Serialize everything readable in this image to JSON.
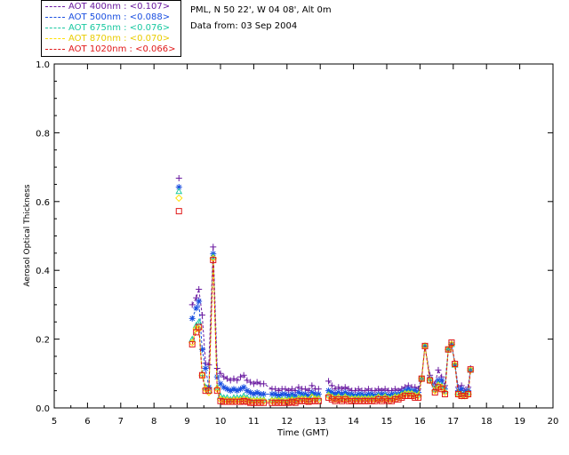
{
  "header": {
    "site": "PML, N 50 22', W 04 08', Alt 0m",
    "date": "Data from: 03 Sep 2004"
  },
  "chart_data": {
    "type": "scatter",
    "title": "",
    "xlabel": "Time (GMT)",
    "ylabel": "Aerosol Optical Thickness",
    "xlim": [
      5,
      20
    ],
    "ylim": [
      0,
      1.0
    ],
    "xticks": [
      5,
      6,
      7,
      8,
      9,
      10,
      11,
      12,
      13,
      14,
      15,
      16,
      17,
      18,
      19,
      20
    ],
    "yticks": [
      "0.0",
      "0.2",
      "0.4",
      "0.6",
      "0.8",
      "1.0"
    ],
    "legend_position": "top-left (outside plot)",
    "series": [
      {
        "name": "AOT  400nm : <0.107>",
        "color": "#6a1aa0",
        "marker": "plus",
        "x": [
          8.75,
          9.15,
          9.27,
          9.35,
          9.45,
          9.55,
          9.65,
          9.78,
          9.9,
          10.0,
          10.1,
          10.2,
          10.3,
          10.4,
          10.5,
          10.6,
          10.7,
          10.8,
          10.9,
          11.0,
          11.1,
          11.2,
          11.3,
          11.55,
          11.65,
          11.75,
          11.85,
          11.95,
          12.05,
          12.15,
          12.25,
          12.35,
          12.45,
          12.55,
          12.65,
          12.75,
          12.85,
          12.95,
          13.25,
          13.35,
          13.45,
          13.55,
          13.65,
          13.75,
          13.85,
          13.95,
          14.05,
          14.15,
          14.25,
          14.35,
          14.45,
          14.55,
          14.65,
          14.75,
          14.85,
          14.95,
          15.05,
          15.15,
          15.25,
          15.35,
          15.45,
          15.55,
          15.65,
          15.75,
          15.85,
          15.95,
          16.05,
          16.15,
          16.3,
          16.45,
          16.55,
          16.65,
          16.75,
          16.85,
          16.95,
          17.05,
          17.15,
          17.25,
          17.35,
          17.45,
          17.52
        ],
        "y": [
          0.668,
          0.3,
          0.32,
          0.345,
          0.27,
          0.13,
          0.125,
          0.468,
          0.115,
          0.1,
          0.09,
          0.085,
          0.08,
          0.085,
          0.08,
          0.09,
          0.095,
          0.08,
          0.075,
          0.07,
          0.075,
          0.07,
          0.07,
          0.055,
          0.055,
          0.05,
          0.055,
          0.055,
          0.05,
          0.055,
          0.05,
          0.06,
          0.055,
          0.055,
          0.05,
          0.065,
          0.055,
          0.055,
          0.078,
          0.065,
          0.055,
          0.06,
          0.055,
          0.06,
          0.055,
          0.05,
          0.05,
          0.055,
          0.05,
          0.05,
          0.055,
          0.05,
          0.05,
          0.055,
          0.05,
          0.055,
          0.05,
          0.05,
          0.055,
          0.05,
          0.055,
          0.06,
          0.065,
          0.06,
          0.06,
          0.055,
          0.09,
          0.18,
          0.095,
          0.07,
          0.11,
          0.09,
          0.065,
          0.17,
          0.19,
          0.13,
          0.06,
          0.065,
          0.05,
          0.06,
          0.115
        ]
      },
      {
        "name": "AOT  500nm : <0.088>",
        "color": "#1a4fe0",
        "marker": "asterisk",
        "x": [
          8.75,
          9.15,
          9.27,
          9.35,
          9.45,
          9.55,
          9.65,
          9.78,
          9.9,
          10.0,
          10.1,
          10.2,
          10.3,
          10.4,
          10.5,
          10.6,
          10.7,
          10.8,
          10.9,
          11.0,
          11.1,
          11.2,
          11.3,
          11.55,
          11.65,
          11.75,
          11.85,
          11.95,
          12.05,
          12.15,
          12.25,
          12.35,
          12.45,
          12.55,
          12.65,
          12.75,
          12.85,
          12.95,
          13.25,
          13.35,
          13.45,
          13.55,
          13.65,
          13.75,
          13.85,
          13.95,
          14.05,
          14.15,
          14.25,
          14.35,
          14.45,
          14.55,
          14.65,
          14.75,
          14.85,
          14.95,
          15.05,
          15.15,
          15.25,
          15.35,
          15.45,
          15.55,
          15.65,
          15.75,
          15.85,
          15.95,
          16.05,
          16.15,
          16.3,
          16.45,
          16.55,
          16.65,
          16.75,
          16.85,
          16.95,
          17.05,
          17.15,
          17.25,
          17.35,
          17.45,
          17.52
        ],
        "y": [
          0.642,
          0.26,
          0.29,
          0.31,
          0.17,
          0.115,
          0.06,
          0.448,
          0.09,
          0.07,
          0.06,
          0.055,
          0.05,
          0.055,
          0.05,
          0.055,
          0.06,
          0.05,
          0.045,
          0.04,
          0.045,
          0.04,
          0.04,
          0.04,
          0.04,
          0.035,
          0.04,
          0.04,
          0.035,
          0.04,
          0.035,
          0.045,
          0.04,
          0.04,
          0.035,
          0.045,
          0.04,
          0.04,
          0.05,
          0.045,
          0.04,
          0.045,
          0.04,
          0.045,
          0.04,
          0.04,
          0.035,
          0.04,
          0.04,
          0.035,
          0.04,
          0.04,
          0.035,
          0.04,
          0.04,
          0.04,
          0.035,
          0.04,
          0.04,
          0.04,
          0.045,
          0.05,
          0.055,
          0.05,
          0.05,
          0.045,
          0.085,
          0.18,
          0.085,
          0.06,
          0.08,
          0.08,
          0.055,
          0.17,
          0.185,
          0.125,
          0.05,
          0.055,
          0.045,
          0.05,
          0.11
        ]
      },
      {
        "name": "AOT  675nm : <0.076>",
        "color": "#18c8a0",
        "marker": "triangle",
        "x": [
          8.75,
          9.15,
          9.27,
          9.35,
          9.45,
          9.55,
          9.65,
          9.78,
          9.9,
          10.0,
          10.1,
          10.2,
          10.3,
          10.4,
          10.5,
          10.6,
          10.7,
          10.8,
          10.9,
          11.0,
          11.1,
          11.2,
          11.3,
          11.55,
          11.65,
          11.75,
          11.85,
          11.95,
          12.05,
          12.15,
          12.25,
          12.35,
          12.45,
          12.55,
          12.65,
          12.75,
          12.85,
          12.95,
          13.25,
          13.35,
          13.45,
          13.55,
          13.65,
          13.75,
          13.85,
          13.95,
          14.05,
          14.15,
          14.25,
          14.35,
          14.45,
          14.55,
          14.65,
          14.75,
          14.85,
          14.95,
          15.05,
          15.15,
          15.25,
          15.35,
          15.45,
          15.55,
          15.65,
          15.75,
          15.85,
          15.95,
          16.05,
          16.15,
          16.3,
          16.45,
          16.55,
          16.65,
          16.75,
          16.85,
          16.95,
          17.05,
          17.15,
          17.25,
          17.35,
          17.45,
          17.52
        ],
        "y": [
          0.63,
          0.2,
          0.24,
          0.25,
          0.1,
          0.06,
          0.05,
          0.44,
          0.06,
          0.035,
          0.03,
          0.03,
          0.025,
          0.03,
          0.03,
          0.03,
          0.035,
          0.03,
          0.025,
          0.025,
          0.025,
          0.025,
          0.025,
          0.025,
          0.025,
          0.025,
          0.025,
          0.025,
          0.025,
          0.03,
          0.025,
          0.03,
          0.03,
          0.03,
          0.025,
          0.035,
          0.03,
          0.03,
          0.04,
          0.035,
          0.03,
          0.035,
          0.03,
          0.035,
          0.03,
          0.03,
          0.03,
          0.03,
          0.03,
          0.03,
          0.03,
          0.03,
          0.03,
          0.035,
          0.03,
          0.035,
          0.03,
          0.03,
          0.035,
          0.035,
          0.04,
          0.045,
          0.045,
          0.045,
          0.04,
          0.04,
          0.085,
          0.18,
          0.08,
          0.055,
          0.07,
          0.065,
          0.05,
          0.17,
          0.185,
          0.125,
          0.045,
          0.04,
          0.04,
          0.045,
          0.11
        ]
      },
      {
        "name": "AOT  870nm : <0.070>",
        "color": "#ffe000",
        "marker": "diamond",
        "x": [
          8.75,
          9.15,
          9.27,
          9.35,
          9.45,
          9.55,
          9.65,
          9.78,
          9.9,
          10.0,
          10.1,
          10.2,
          10.3,
          10.4,
          10.5,
          10.6,
          10.7,
          10.8,
          10.9,
          11.0,
          11.1,
          11.2,
          11.3,
          11.55,
          11.65,
          11.75,
          11.85,
          11.95,
          12.05,
          12.15,
          12.25,
          12.35,
          12.45,
          12.55,
          12.65,
          12.75,
          12.85,
          12.95,
          13.25,
          13.35,
          13.45,
          13.55,
          13.65,
          13.75,
          13.85,
          13.95,
          14.05,
          14.15,
          14.25,
          14.35,
          14.45,
          14.55,
          14.65,
          14.75,
          14.85,
          14.95,
          15.05,
          15.15,
          15.25,
          15.35,
          15.45,
          15.55,
          15.65,
          15.75,
          15.85,
          15.95,
          16.05,
          16.15,
          16.3,
          16.45,
          16.55,
          16.65,
          16.75,
          16.85,
          16.95,
          17.05,
          17.15,
          17.25,
          17.35,
          17.45,
          17.52
        ],
        "y": [
          0.61,
          0.19,
          0.23,
          0.23,
          0.095,
          0.055,
          0.045,
          0.435,
          0.055,
          0.025,
          0.022,
          0.022,
          0.02,
          0.022,
          0.022,
          0.022,
          0.025,
          0.022,
          0.02,
          0.02,
          0.02,
          0.02,
          0.02,
          0.02,
          0.02,
          0.02,
          0.02,
          0.02,
          0.02,
          0.022,
          0.02,
          0.025,
          0.025,
          0.025,
          0.02,
          0.03,
          0.025,
          0.025,
          0.035,
          0.03,
          0.025,
          0.03,
          0.025,
          0.03,
          0.025,
          0.025,
          0.025,
          0.025,
          0.025,
          0.025,
          0.025,
          0.025,
          0.025,
          0.03,
          0.025,
          0.03,
          0.025,
          0.025,
          0.03,
          0.03,
          0.035,
          0.04,
          0.04,
          0.04,
          0.035,
          0.035,
          0.085,
          0.18,
          0.08,
          0.05,
          0.065,
          0.06,
          0.045,
          0.17,
          0.185,
          0.125,
          0.04,
          0.035,
          0.035,
          0.04,
          0.11
        ]
      },
      {
        "name": "AOT 1020nm : <0.066>",
        "color": "#e01818",
        "marker": "square",
        "x": [
          8.75,
          9.15,
          9.27,
          9.35,
          9.45,
          9.55,
          9.65,
          9.78,
          9.9,
          10.0,
          10.1,
          10.2,
          10.3,
          10.4,
          10.5,
          10.6,
          10.7,
          10.8,
          10.9,
          11.0,
          11.1,
          11.2,
          11.3,
          11.55,
          11.65,
          11.75,
          11.85,
          11.95,
          12.05,
          12.15,
          12.25,
          12.35,
          12.45,
          12.55,
          12.65,
          12.75,
          12.85,
          12.95,
          13.25,
          13.35,
          13.45,
          13.55,
          13.65,
          13.75,
          13.85,
          13.95,
          14.05,
          14.15,
          14.25,
          14.35,
          14.45,
          14.55,
          14.65,
          14.75,
          14.85,
          14.95,
          15.05,
          15.15,
          15.25,
          15.35,
          15.45,
          15.55,
          15.65,
          15.75,
          15.85,
          15.95,
          16.05,
          16.15,
          16.3,
          16.45,
          16.55,
          16.65,
          16.75,
          16.85,
          16.95,
          17.05,
          17.15,
          17.25,
          17.35,
          17.45,
          17.52
        ],
        "y": [
          0.572,
          0.185,
          0.22,
          0.235,
          0.095,
          0.05,
          0.05,
          0.43,
          0.05,
          0.02,
          0.018,
          0.018,
          0.018,
          0.018,
          0.018,
          0.018,
          0.02,
          0.018,
          0.015,
          0.015,
          0.015,
          0.015,
          0.015,
          0.015,
          0.015,
          0.015,
          0.015,
          0.015,
          0.015,
          0.018,
          0.015,
          0.02,
          0.02,
          0.02,
          0.018,
          0.02,
          0.02,
          0.02,
          0.03,
          0.025,
          0.02,
          0.025,
          0.02,
          0.025,
          0.02,
          0.02,
          0.02,
          0.02,
          0.02,
          0.02,
          0.02,
          0.02,
          0.02,
          0.025,
          0.02,
          0.025,
          0.02,
          0.02,
          0.025,
          0.025,
          0.03,
          0.035,
          0.035,
          0.035,
          0.03,
          0.03,
          0.085,
          0.18,
          0.08,
          0.045,
          0.06,
          0.055,
          0.04,
          0.17,
          0.19,
          0.128,
          0.04,
          0.035,
          0.035,
          0.04,
          0.112
        ]
      }
    ]
  }
}
